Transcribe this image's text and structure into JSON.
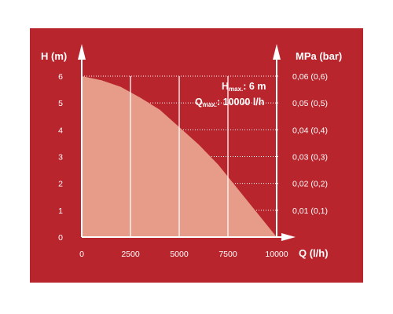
{
  "chart_data": {
    "type": "area",
    "title": "",
    "xlabel": "Q (l/h)",
    "ylabel_left": "H (m)",
    "ylabel_right": "MPa (bar)",
    "xlim": [
      0,
      10000
    ],
    "ylim": [
      0,
      6
    ],
    "grid": true,
    "x_ticks": [
      "0",
      "2500",
      "5000",
      "7500",
      "10000"
    ],
    "y_ticks_left": [
      "0",
      "1",
      "2",
      "3",
      "4",
      "5",
      "6"
    ],
    "y_ticks_right": [
      "0,01 (0,1)",
      "0,02 (0,2)",
      "0,03 (0,3)",
      "0,04 (0,4)",
      "0,05 (0,5)",
      "0,06 (0,6)"
    ],
    "series": [
      {
        "x": [
          0,
          1000,
          2000,
          3000,
          4000,
          5000,
          6000,
          7000,
          8000,
          9000,
          10000
        ],
        "y": [
          6.0,
          5.85,
          5.6,
          5.2,
          4.75,
          4.1,
          3.45,
          2.7,
          1.8,
          0.9,
          0.0
        ]
      }
    ],
    "annotations": {
      "h_max": {
        "main": "H",
        "sub": "max.",
        "value": ": 6 m"
      },
      "q_max": {
        "main": "Q",
        "sub": "max.",
        "value": ": 10000 l/h"
      }
    }
  },
  "colors": {
    "panel_bg": "#b8252d",
    "area_fill": "#e69c88",
    "grid": "#ffffff",
    "text": "#ffffff"
  }
}
